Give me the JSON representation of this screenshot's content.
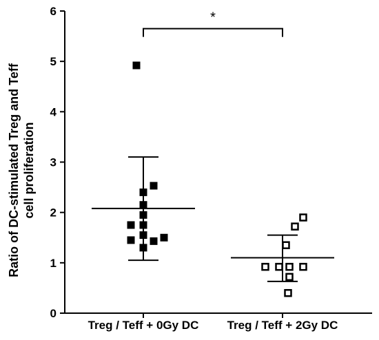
{
  "chart_data": {
    "type": "scatter",
    "title": "",
    "ylabel_lines": [
      "Ratio of DC-stimulated Treg and Teff",
      "cell proliferation"
    ],
    "xlabel": "",
    "ylim": [
      0,
      6
    ],
    "yticks": [
      "0",
      "1",
      "2",
      "3",
      "4",
      "5",
      "6"
    ],
    "categories": [
      "Treg / Teff + 0Gy DC",
      "Treg / Teff + 2Gy DC"
    ],
    "grid": false,
    "legend": "none",
    "series": [
      {
        "category": "Treg / Teff + 0Gy DC",
        "marker": "filled-square",
        "color": "#000000",
        "points": [
          {
            "offset": -0.1,
            "y": 4.92
          },
          {
            "offset": 0.15,
            "y": 2.53
          },
          {
            "offset": 0.0,
            "y": 2.4
          },
          {
            "offset": 0.0,
            "y": 2.15
          },
          {
            "offset": 0.0,
            "y": 1.95
          },
          {
            "offset": 0.0,
            "y": 1.75
          },
          {
            "offset": -0.18,
            "y": 1.75
          },
          {
            "offset": 0.0,
            "y": 1.55
          },
          {
            "offset": -0.18,
            "y": 1.45
          },
          {
            "offset": 0.15,
            "y": 1.43
          },
          {
            "offset": 0.3,
            "y": 1.5
          },
          {
            "offset": 0.0,
            "y": 1.3
          }
        ],
        "mean": 2.08,
        "error_low": 1.05,
        "error_high": 3.1
      },
      {
        "category": "Treg / Teff + 2Gy DC",
        "marker": "open-square",
        "color": "#000000",
        "points": [
          {
            "offset": 0.3,
            "y": 1.9
          },
          {
            "offset": 0.18,
            "y": 1.72
          },
          {
            "offset": 0.05,
            "y": 1.35
          },
          {
            "offset": -0.25,
            "y": 0.92
          },
          {
            "offset": -0.05,
            "y": 0.92
          },
          {
            "offset": 0.1,
            "y": 0.92
          },
          {
            "offset": 0.3,
            "y": 0.92
          },
          {
            "offset": 0.1,
            "y": 0.72
          },
          {
            "offset": 0.08,
            "y": 0.4
          }
        ],
        "mean": 1.1,
        "error_low": 0.63,
        "error_high": 1.55
      }
    ],
    "annotations": [
      {
        "type": "significance-bracket",
        "from": "Treg / Teff + 0Gy DC",
        "to": "Treg / Teff + 2Gy DC",
        "y": 5.65,
        "label": "*"
      }
    ]
  }
}
